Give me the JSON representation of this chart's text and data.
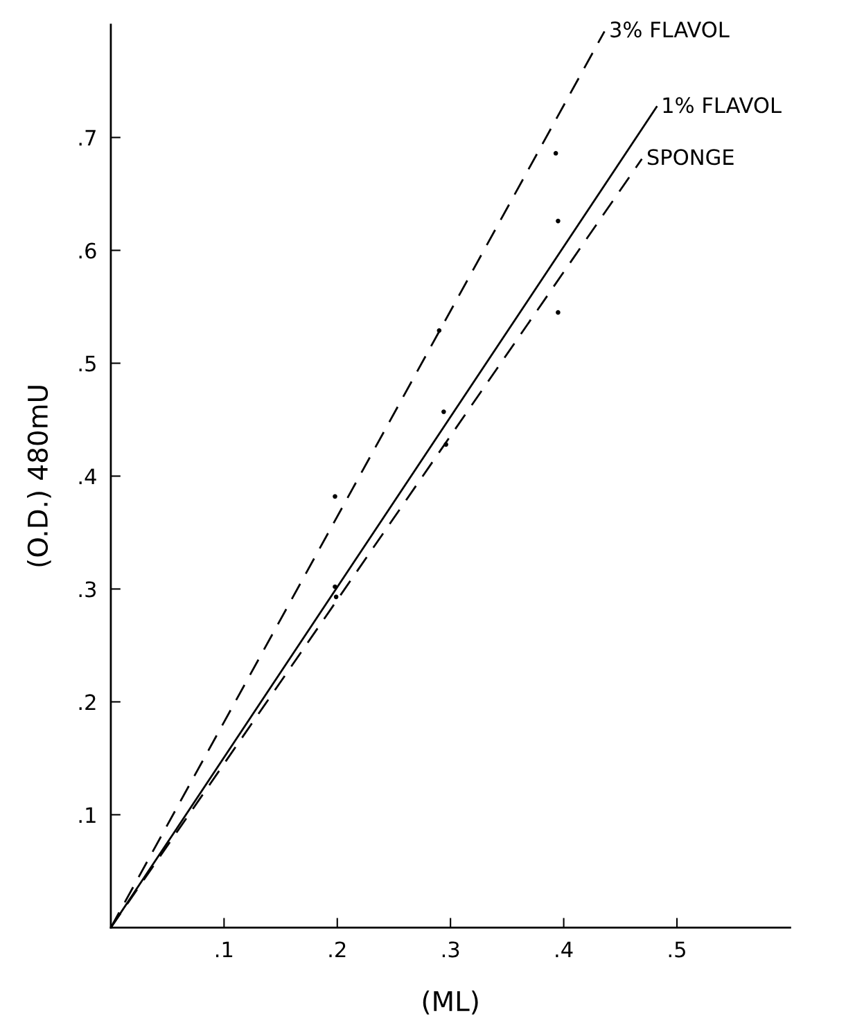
{
  "chart_data": {
    "type": "line",
    "xlabel": "(ML)",
    "ylabel": "(O.D.) 480mU",
    "xlim": [
      0,
      0.6
    ],
    "ylim": [
      0,
      0.8
    ],
    "xticks": [
      {
        "value": 0.1,
        "label": ".1"
      },
      {
        "value": 0.2,
        "label": ".2"
      },
      {
        "value": 0.3,
        "label": ".3"
      },
      {
        "value": 0.4,
        "label": ".4"
      },
      {
        "value": 0.5,
        "label": ".5"
      }
    ],
    "yticks": [
      {
        "value": 0.1,
        "label": ".1"
      },
      {
        "value": 0.2,
        "label": ".2"
      },
      {
        "value": 0.3,
        "label": ".3"
      },
      {
        "value": 0.4,
        "label": ".4"
      },
      {
        "value": 0.5,
        "label": ".5"
      },
      {
        "value": 0.6,
        "label": ".6"
      },
      {
        "value": 0.7,
        "label": ".7"
      }
    ],
    "grid": false,
    "legend": false,
    "series": [
      {
        "name": "3% FLAVOL",
        "color": "#000000",
        "line_style": "dashed",
        "x": [
          0,
          0.436
        ],
        "values": [
          0,
          0.794
        ]
      },
      {
        "name": "1% FLAVOL",
        "color": "#000000",
        "line_style": "solid",
        "x": [
          0,
          0.482
        ],
        "values": [
          0,
          0.727
        ]
      },
      {
        "name": "SPONGE",
        "color": "#000000",
        "line_style": "dashed",
        "x": [
          0,
          0.469
        ],
        "values": [
          0,
          0.681
        ]
      },
      {
        "type": "scatter",
        "color": "#000000",
        "marker": "circle",
        "x": [
          0.198,
          0.29,
          0.393
        ],
        "values": [
          0.382,
          0.529,
          0.686
        ]
      },
      {
        "type": "scatter",
        "color": "#000000",
        "marker": "circle",
        "x": [
          0.198,
          0.294,
          0.395
        ],
        "values": [
          0.302,
          0.457,
          0.626
        ]
      },
      {
        "type": "scatter",
        "color": "#000000",
        "marker": "circle",
        "x": [
          0.199,
          0.296,
          0.395
        ],
        "values": [
          0.293,
          0.428,
          0.545
        ]
      }
    ]
  }
}
